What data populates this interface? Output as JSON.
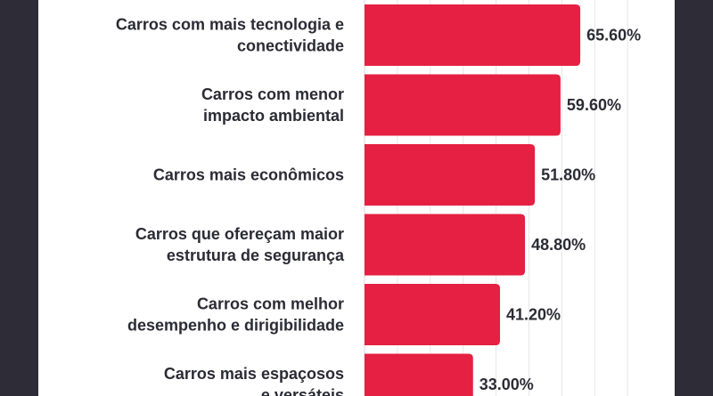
{
  "chart_data": {
    "type": "bar",
    "orientation": "horizontal",
    "categories": [
      [
        "Carros com mais tecnologia e",
        "conectividade"
      ],
      [
        "Carros com menor",
        "impacto ambiental"
      ],
      [
        "Carros mais econômicos"
      ],
      [
        "Carros que ofereçam maior",
        "estrutura de segurança"
      ],
      [
        "Carros com melhor",
        "desempenho e dirigibilidade"
      ],
      [
        "Carros mais espaçosos",
        "e versáteis"
      ]
    ],
    "values": [
      65.6,
      59.6,
      51.8,
      48.8,
      41.2,
      33.0
    ],
    "data_labels": [
      "65.60%",
      "59.60%",
      "51.80%",
      "48.80%",
      "41.20%",
      "33.00%"
    ],
    "xlim": [
      0,
      90
    ],
    "grid": true,
    "grid_step": 10,
    "colors": {
      "bar": "#e52042",
      "text": "#2b2b35",
      "frame": "#2e2d37",
      "grid": "#e6e6e6"
    }
  }
}
